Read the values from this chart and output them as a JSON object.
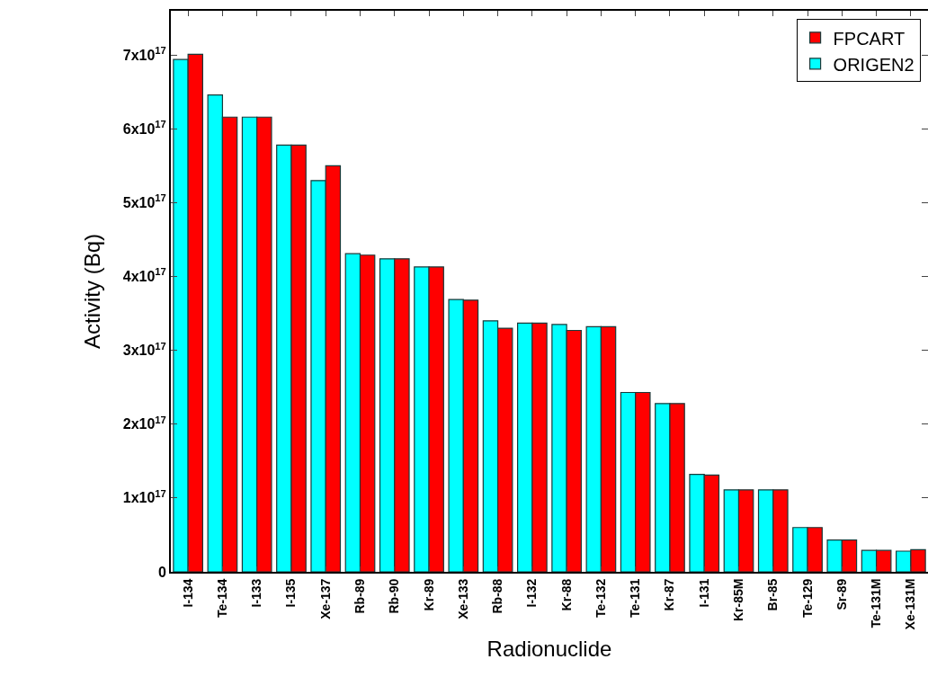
{
  "chart_data": {
    "type": "bar",
    "xlabel": "Radionuclide",
    "ylabel": "Activity (Bq)",
    "categories": [
      "I-134",
      "Te-134",
      "I-133",
      "I-135",
      "Xe-137",
      "Rb-89",
      "Rb-90",
      "Kr-89",
      "Xe-133",
      "Rb-88",
      "I-132",
      "Kr-88",
      "Te-132",
      "Te-131",
      "Kr-87",
      "I-131",
      "Kr-85M",
      "Br-85",
      "Te-129",
      "Sr-89",
      "Te-131M",
      "Xe-131M"
    ],
    "series": [
      {
        "name": "ORIGEN2",
        "color": "#00ffff",
        "values": [
          6.94e+17,
          6.46e+17,
          6.16e+17,
          5.78e+17,
          5.3e+17,
          4.31e+17,
          4.24e+17,
          4.13e+17,
          3.69e+17,
          3.4e+17,
          3.37e+17,
          3.35e+17,
          3.32e+17,
          2.43e+17,
          2.28e+17,
          1.32e+17,
          1.11e+17,
          1.11e+17,
          6e+16,
          4.3e+16,
          2.9e+16,
          2.8e+16
        ]
      },
      {
        "name": "FPCART",
        "color": "#ff0000",
        "values": [
          7.01e+17,
          6.16e+17,
          6.16e+17,
          5.78e+17,
          5.5e+17,
          4.29e+17,
          4.24e+17,
          4.13e+17,
          3.68e+17,
          3.3e+17,
          3.37e+17,
          3.27e+17,
          3.32e+17,
          2.43e+17,
          2.28e+17,
          1.31e+17,
          1.11e+17,
          1.11e+17,
          6e+16,
          4.3e+16,
          2.9e+16,
          3e+16
        ]
      }
    ],
    "ylim": [
      0,
      7.6e+17
    ],
    "yticks": [
      0,
      {
        "value": 1e+17,
        "label": "1x10$^{17}$"
      },
      {
        "value": 2e+17,
        "label": "2x10$^{17}$"
      },
      {
        "value": 3e+17,
        "label": "3x10$^{17}$"
      },
      {
        "value": 4e+17,
        "label": "4x10$^{17}$"
      },
      {
        "value": 5e+17,
        "label": "5x10$^{17}$"
      },
      {
        "value": 6e+17,
        "label": "6x10$^{17}$"
      },
      {
        "value": 7e+17,
        "label": "7x10$^{17}$"
      }
    ],
    "grid": false,
    "legend": "top right"
  }
}
